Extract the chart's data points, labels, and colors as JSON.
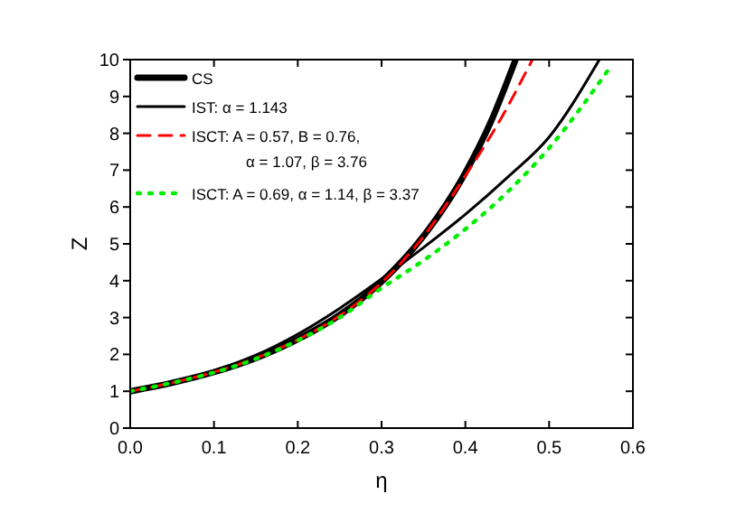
{
  "chart_data": {
    "type": "line",
    "xlabel": "η",
    "ylabel": "Z",
    "xlim": [
      0,
      0.6
    ],
    "ylim": [
      0,
      10
    ],
    "xticks": [
      {
        "value": 0,
        "label": "0.0"
      },
      0.1,
      0.2,
      0.3,
      0.4,
      0.5,
      0.6
    ],
    "yticks": [
      0,
      1,
      2,
      3,
      4,
      5,
      6,
      7,
      8,
      9,
      10
    ],
    "grid": false,
    "legend": "top left",
    "series": [
      {
        "name": "CS",
        "color": "#000000",
        "line_style": "solid",
        "x": [
          0,
          0.05,
          0.1,
          0.15,
          0.2,
          0.25,
          0.3,
          0.35,
          0.4,
          0.43,
          0.46
        ],
        "values": [
          1,
          1.23,
          1.52,
          1.9,
          2.41,
          3.07,
          3.97,
          5.21,
          6.93,
          8.29,
          10
        ]
      },
      {
        "name": "IST: α = 1.143",
        "color": "#000000",
        "line_style": "solid",
        "x": [
          0,
          0.05,
          0.1,
          0.15,
          0.2,
          0.25,
          0.3,
          0.35,
          0.4,
          0.45,
          0.5,
          0.56
        ],
        "values": [
          1,
          1.25,
          1.56,
          1.98,
          2.55,
          3.25,
          4.05,
          4.9,
          5.8,
          6.8,
          7.9,
          10
        ]
      },
      {
        "name": "ISCT:  A = 0.57, B = 0.76,\nα = 1.07, β = 3.76",
        "color": "#ff0000",
        "line_style": "dashed",
        "x": [
          0,
          0.05,
          0.1,
          0.15,
          0.2,
          0.25,
          0.3,
          0.35,
          0.4,
          0.44,
          0.48
        ],
        "values": [
          1,
          1.23,
          1.52,
          1.9,
          2.4,
          3.05,
          3.95,
          5.2,
          6.85,
          8.3,
          10
        ]
      },
      {
        "name": "ISCT: A = 0.69, α = 1.14, β = 3.37",
        "color": "#00ee00",
        "line_style": "dotted",
        "x": [
          0,
          0.05,
          0.1,
          0.15,
          0.2,
          0.25,
          0.3,
          0.35,
          0.4,
          0.45,
          0.5,
          0.57
        ],
        "values": [
          1,
          1.23,
          1.51,
          1.88,
          2.38,
          3.0,
          3.8,
          4.55,
          5.4,
          6.4,
          7.6,
          9.7
        ]
      }
    ]
  }
}
